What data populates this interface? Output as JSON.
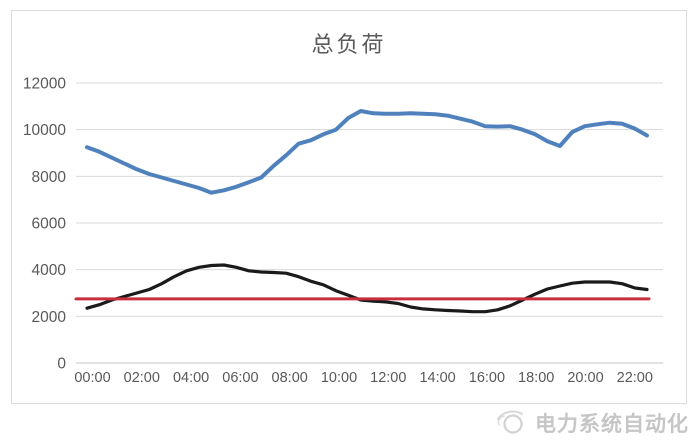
{
  "watermark": {
    "icon": "swoosh-globe-icon",
    "text": "电力系统自动化",
    "color": "#c6c6c6"
  },
  "chart_data": {
    "type": "line",
    "title": "总负荷",
    "xlabel": "",
    "ylabel": "",
    "grid": true,
    "legend_position": "none",
    "ylim": [
      0,
      12000
    ],
    "y_ticks": [
      0,
      2000,
      4000,
      6000,
      8000,
      10000,
      12000
    ],
    "x_tick_hours": [
      0,
      2,
      4,
      6,
      8,
      10,
      12,
      14,
      16,
      18,
      20,
      22
    ],
    "x_tick_labels": [
      "00:00",
      "02:00",
      "04:00",
      "06:00",
      "08:00",
      "10:00",
      "12:00",
      "14:00",
      "16:00",
      "18:00",
      "20:00",
      "22:00"
    ],
    "x_start_hour": 0,
    "x_step_hours": 0.5,
    "x_end_hour": 22.5,
    "axis_text_color": "#595959",
    "gridline_color": "#dadada",
    "series": [
      {
        "name": "blue-load-line",
        "color": "#4F81BD",
        "stroke_width": 4,
        "values": [
          9250,
          9050,
          8800,
          8550,
          8300,
          8100,
          7950,
          7800,
          7650,
          7500,
          7300,
          7400,
          7550,
          7750,
          7950,
          8450,
          8900,
          9400,
          9550,
          9800,
          10000,
          10500,
          10800,
          10700,
          10680,
          10680,
          10700,
          10680,
          10660,
          10600,
          10470,
          10340,
          10150,
          10130,
          10150,
          10000,
          9800,
          9500,
          9300,
          9900,
          10150,
          10230,
          10300,
          10250,
          10050,
          9750
        ]
      },
      {
        "name": "black-load-line",
        "color": "#1a1a1a",
        "stroke_width": 3.2,
        "values": [
          2350,
          2500,
          2700,
          2850,
          3000,
          3150,
          3400,
          3700,
          3950,
          4100,
          4180,
          4200,
          4100,
          3950,
          3900,
          3880,
          3850,
          3700,
          3500,
          3350,
          3100,
          2900,
          2700,
          2650,
          2620,
          2550,
          2400,
          2320,
          2280,
          2250,
          2230,
          2200,
          2200,
          2280,
          2450,
          2700,
          2950,
          3170,
          3300,
          3420,
          3470,
          3470,
          3470,
          3400,
          3220,
          3150
        ]
      },
      {
        "name": "red-reference-line",
        "color": "#C5303C",
        "stroke_width": 3,
        "constant": 2750
      }
    ]
  }
}
